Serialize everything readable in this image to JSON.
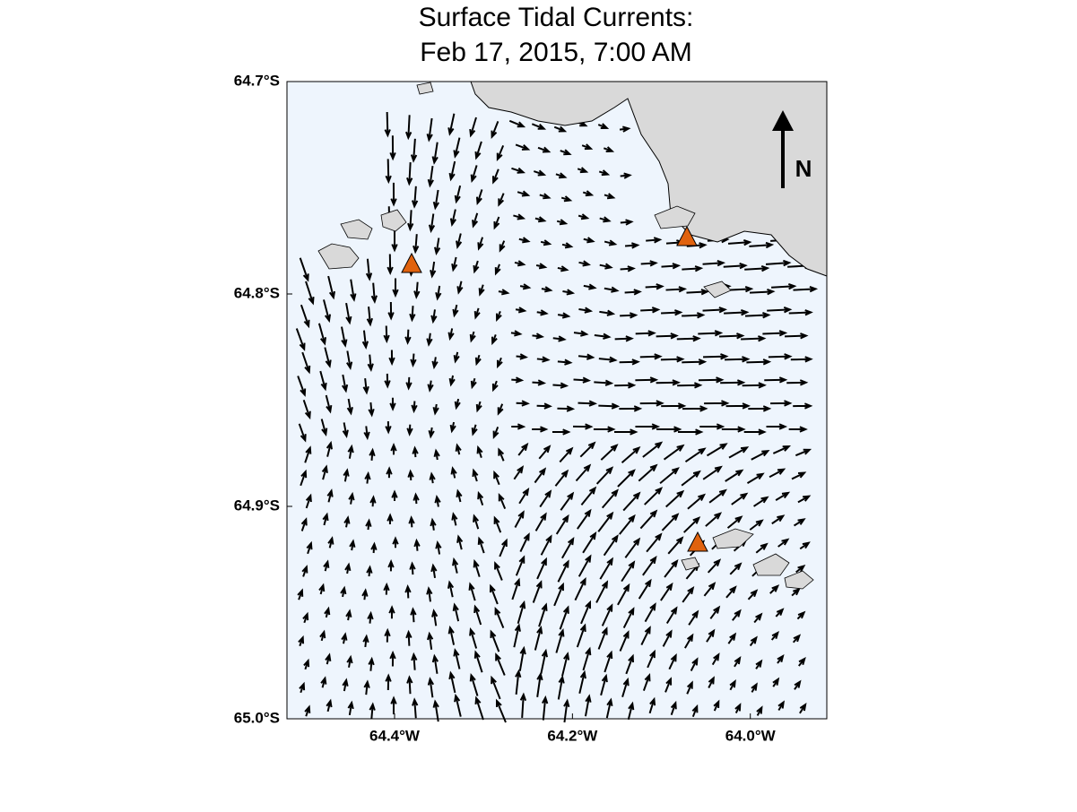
{
  "map": {
    "title": [
      "Surface Tidal Currents:",
      "Feb 17, 2015,  7:00 AM"
    ],
    "north_label": "N",
    "xlim": [
      -64.521,
      -63.914
    ],
    "ylim": [
      -65.0,
      -64.7
    ],
    "xticks": [
      {
        "value": -64.4,
        "label": "64.4°W"
      },
      {
        "value": -64.2,
        "label": "64.2°W"
      },
      {
        "value": -64.0,
        "label": "64.0°W"
      }
    ],
    "yticks": [
      {
        "value": -64.7,
        "label": "64.7°S"
      },
      {
        "value": -64.8,
        "label": "64.8°S"
      },
      {
        "value": -64.9,
        "label": "64.9°S"
      },
      {
        "value": -65.0,
        "label": "65.0°S"
      }
    ]
  }
}
